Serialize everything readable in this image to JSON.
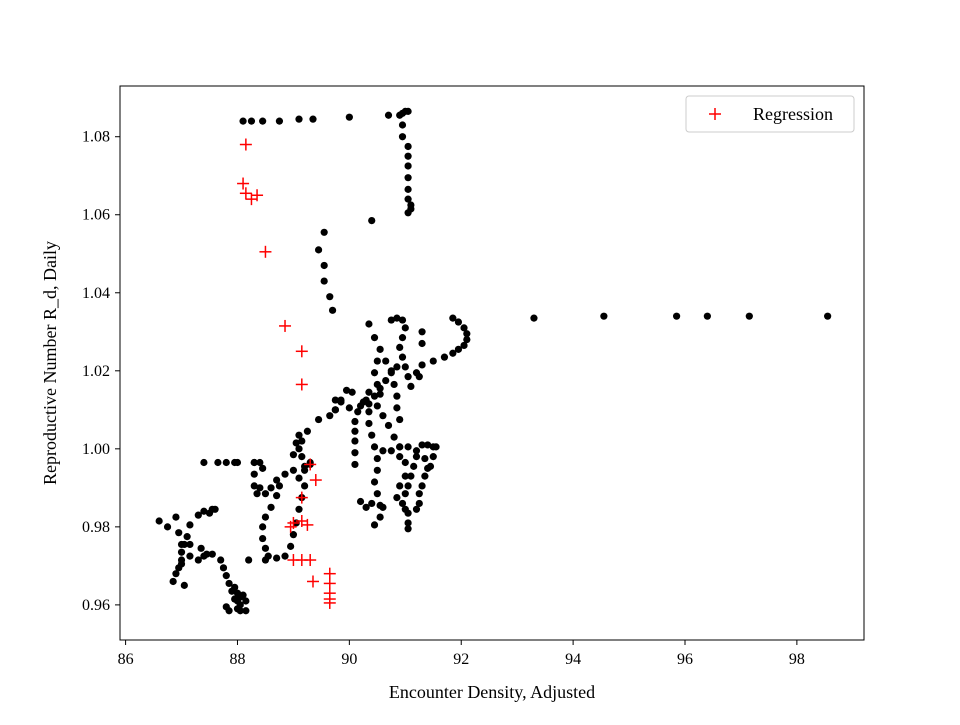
{
  "chart_data": {
    "type": "scatter",
    "title": "",
    "xlabel": "Encounter Density, Adjusted",
    "ylabel": "Reproductive Number R_d, Daily",
    "xlim": [
      85.9,
      99.2
    ],
    "ylim": [
      0.951,
      1.093
    ],
    "xticks": [
      "86",
      "88",
      "90",
      "92",
      "94",
      "96",
      "98"
    ],
    "yticks": [
      "0.96",
      "0.98",
      "1.00",
      "1.02",
      "1.04",
      "1.06",
      "1.08"
    ],
    "grid": false,
    "legend": {
      "position": "top-right",
      "entries": [
        "Regression"
      ]
    },
    "colors": {
      "points": "#000000",
      "regression": "#ff0000"
    },
    "series": [
      {
        "marker": "circle",
        "color": "#000000",
        "points": [
          [
            88.1,
            1.084
          ],
          [
            88.25,
            1.084
          ],
          [
            88.45,
            1.084
          ],
          [
            88.75,
            1.084
          ],
          [
            89.1,
            1.0845
          ],
          [
            89.35,
            1.0845
          ],
          [
            90.0,
            1.085
          ],
          [
            90.7,
            1.0855
          ],
          [
            90.9,
            1.0855
          ],
          [
            90.95,
            1.086
          ],
          [
            91.0,
            1.0865
          ],
          [
            91.05,
            1.0865
          ],
          [
            90.95,
            1.083
          ],
          [
            90.95,
            1.08
          ],
          [
            91.05,
            1.0775
          ],
          [
            91.05,
            1.075
          ],
          [
            91.05,
            1.0725
          ],
          [
            91.05,
            1.0695
          ],
          [
            91.05,
            1.0665
          ],
          [
            91.05,
            1.064
          ],
          [
            91.1,
            1.0625
          ],
          [
            91.1,
            1.0615
          ],
          [
            91.05,
            1.0605
          ],
          [
            90.4,
            1.0585
          ],
          [
            89.55,
            1.0555
          ],
          [
            89.45,
            1.051
          ],
          [
            89.55,
            1.047
          ],
          [
            89.55,
            1.043
          ],
          [
            89.65,
            1.039
          ],
          [
            89.7,
            1.0355
          ],
          [
            93.3,
            1.0335
          ],
          [
            94.55,
            1.034
          ],
          [
            95.85,
            1.034
          ],
          [
            96.4,
            1.034
          ],
          [
            97.15,
            1.034
          ],
          [
            98.55,
            1.034
          ],
          [
            90.75,
            1.033
          ],
          [
            90.85,
            1.0335
          ],
          [
            90.95,
            1.033
          ],
          [
            91.0,
            1.031
          ],
          [
            90.95,
            1.0285
          ],
          [
            90.9,
            1.026
          ],
          [
            90.95,
            1.0235
          ],
          [
            91.0,
            1.021
          ],
          [
            91.05,
            1.0185
          ],
          [
            91.1,
            1.016
          ],
          [
            91.85,
            1.0335
          ],
          [
            91.95,
            1.0325
          ],
          [
            92.05,
            1.031
          ],
          [
            92.1,
            1.0295
          ],
          [
            92.1,
            1.028
          ],
          [
            92.05,
            1.0265
          ],
          [
            91.95,
            1.0255
          ],
          [
            91.85,
            1.0245
          ],
          [
            91.7,
            1.0235
          ],
          [
            91.5,
            1.0225
          ],
          [
            91.3,
            1.0215
          ],
          [
            91.2,
            1.0195
          ],
          [
            91.25,
            1.0185
          ],
          [
            91.3,
            1.03
          ],
          [
            91.3,
            1.027
          ],
          [
            90.35,
            1.032
          ],
          [
            90.45,
            1.0285
          ],
          [
            90.55,
            1.0255
          ],
          [
            90.5,
            1.0225
          ],
          [
            90.45,
            1.0195
          ],
          [
            90.5,
            1.0165
          ],
          [
            90.55,
            1.014
          ],
          [
            90.5,
            1.011
          ],
          [
            90.6,
            1.0085
          ],
          [
            90.7,
            1.006
          ],
          [
            90.8,
            1.003
          ],
          [
            90.9,
            1.0005
          ],
          [
            90.65,
            1.0225
          ],
          [
            90.75,
            1.0195
          ],
          [
            90.8,
            1.0165
          ],
          [
            90.85,
            1.0135
          ],
          [
            90.85,
            1.0105
          ],
          [
            90.9,
            1.0075
          ],
          [
            90.35,
            1.0145
          ],
          [
            90.25,
            1.012
          ],
          [
            90.15,
            1.0095
          ],
          [
            90.1,
            1.007
          ],
          [
            90.1,
            1.0045
          ],
          [
            90.1,
            1.002
          ],
          [
            90.1,
            0.999
          ],
          [
            90.1,
            0.996
          ],
          [
            90.3,
            1.0125
          ],
          [
            90.35,
            1.0095
          ],
          [
            90.35,
            1.0065
          ],
          [
            90.4,
            1.0035
          ],
          [
            90.45,
            1.0005
          ],
          [
            90.5,
            0.9975
          ],
          [
            90.5,
            0.9945
          ],
          [
            90.45,
            0.9915
          ],
          [
            90.5,
            0.9885
          ],
          [
            90.55,
            0.9855
          ],
          [
            90.55,
            0.9825
          ],
          [
            90.45,
            0.9805
          ],
          [
            90.2,
            0.9865
          ],
          [
            90.3,
            0.985
          ],
          [
            90.4,
            0.986
          ],
          [
            90.6,
            0.985
          ],
          [
            90.6,
            0.9995
          ],
          [
            90.75,
            0.9995
          ],
          [
            90.9,
            1.0005
          ],
          [
            91.05,
            1.0005
          ],
          [
            91.2,
            0.9995
          ],
          [
            91.3,
            1.001
          ],
          [
            91.4,
            1.001
          ],
          [
            91.5,
            1.0005
          ],
          [
            91.55,
            1.0005
          ],
          [
            91.5,
            0.998
          ],
          [
            91.45,
            0.9955
          ],
          [
            91.35,
            0.993
          ],
          [
            91.3,
            0.9905
          ],
          [
            91.25,
            0.9885
          ],
          [
            91.25,
            0.986
          ],
          [
            91.2,
            0.9845
          ],
          [
            91.05,
            0.9835
          ],
          [
            91.0,
            0.9845
          ],
          [
            90.95,
            0.986
          ],
          [
            90.85,
            0.9875
          ],
          [
            90.9,
            0.9905
          ],
          [
            91.0,
            0.993
          ],
          [
            91.0,
            0.9965
          ],
          [
            90.9,
            0.998
          ],
          [
            91.05,
            0.981
          ],
          [
            91.05,
            0.9795
          ],
          [
            91.2,
            0.998
          ],
          [
            91.15,
            0.9955
          ],
          [
            91.1,
            0.993
          ],
          [
            91.05,
            0.9905
          ],
          [
            91.0,
            0.9885
          ],
          [
            91.35,
            0.9975
          ],
          [
            91.4,
            0.995
          ],
          [
            89.95,
            1.015
          ],
          [
            89.85,
            1.0125
          ],
          [
            89.75,
            1.01
          ],
          [
            89.65,
            1.0085
          ],
          [
            89.45,
            1.0075
          ],
          [
            89.25,
            1.0045
          ],
          [
            89.15,
            1.002
          ],
          [
            89.1,
            1.0
          ],
          [
            89.15,
            0.998
          ],
          [
            89.3,
            0.9965
          ],
          [
            89.2,
            0.9955
          ],
          [
            89.0,
            0.9945
          ],
          [
            88.85,
            0.9935
          ],
          [
            88.7,
            0.992
          ],
          [
            88.6,
            0.99
          ],
          [
            88.5,
            0.9885
          ],
          [
            88.35,
            0.9885
          ],
          [
            88.3,
            0.9905
          ],
          [
            88.3,
            0.9935
          ],
          [
            88.3,
            0.9965
          ],
          [
            88.4,
            0.9965
          ],
          [
            88.45,
            0.995
          ],
          [
            88.4,
            0.99
          ],
          [
            88.75,
            0.9905
          ],
          [
            88.7,
            0.988
          ],
          [
            88.6,
            0.985
          ],
          [
            88.5,
            0.9825
          ],
          [
            88.45,
            0.98
          ],
          [
            88.45,
            0.977
          ],
          [
            88.5,
            0.9745
          ],
          [
            88.55,
            0.9725
          ],
          [
            88.7,
            0.972
          ],
          [
            88.85,
            0.9725
          ],
          [
            88.95,
            0.975
          ],
          [
            89.0,
            0.978
          ],
          [
            89.05,
            0.981
          ],
          [
            89.1,
            0.9845
          ],
          [
            89.15,
            0.9875
          ],
          [
            89.2,
            0.9905
          ],
          [
            89.1,
            0.9925
          ],
          [
            89.2,
            0.9945
          ],
          [
            89.3,
            0.996
          ],
          [
            89.1,
            1.0035
          ],
          [
            89.05,
            1.0015
          ],
          [
            89.0,
            0.9985
          ],
          [
            87.8,
            0.9965
          ],
          [
            87.65,
            0.9965
          ],
          [
            87.95,
            0.9965
          ],
          [
            88.0,
            0.9965
          ],
          [
            88.3,
            0.9965
          ],
          [
            87.4,
            0.9965
          ],
          [
            87.55,
            0.973
          ],
          [
            87.4,
            0.9725
          ],
          [
            87.3,
            0.9715
          ],
          [
            87.45,
            0.973
          ],
          [
            87.7,
            0.9715
          ],
          [
            87.75,
            0.9695
          ],
          [
            87.8,
            0.9675
          ],
          [
            87.85,
            0.9655
          ],
          [
            87.9,
            0.9635
          ],
          [
            87.95,
            0.9615
          ],
          [
            87.8,
            0.9595
          ],
          [
            87.85,
            0.9585
          ],
          [
            88.0,
            0.959
          ],
          [
            88.0,
            0.961
          ],
          [
            88.0,
            0.963
          ],
          [
            87.95,
            0.9645
          ],
          [
            88.05,
            0.96
          ],
          [
            88.05,
            0.962
          ],
          [
            88.1,
            0.9625
          ],
          [
            88.15,
            0.961
          ],
          [
            88.15,
            0.9585
          ],
          [
            88.05,
            0.9585
          ],
          [
            88.2,
            0.9715
          ],
          [
            88.5,
            0.9715
          ],
          [
            87.6,
            0.9845
          ],
          [
            87.55,
            0.9845
          ],
          [
            87.5,
            0.9835
          ],
          [
            87.4,
            0.984
          ],
          [
            87.3,
            0.983
          ],
          [
            87.15,
            0.9805
          ],
          [
            87.1,
            0.9775
          ],
          [
            87.05,
            0.9755
          ],
          [
            87.0,
            0.9735
          ],
          [
            87.0,
            0.9715
          ],
          [
            86.95,
            0.9695
          ],
          [
            86.9,
            0.968
          ],
          [
            86.85,
            0.966
          ],
          [
            86.6,
            0.9815
          ],
          [
            86.75,
            0.98
          ],
          [
            86.9,
            0.9825
          ],
          [
            86.95,
            0.9785
          ],
          [
            87.0,
            0.9755
          ],
          [
            87.15,
            0.9755
          ],
          [
            87.35,
            0.9745
          ],
          [
            87.15,
            0.9725
          ],
          [
            87.0,
            0.9705
          ],
          [
            87.05,
            0.965
          ],
          [
            90.05,
            1.0145
          ],
          [
            89.85,
            1.012
          ],
          [
            89.75,
            1.0125
          ],
          [
            89.75,
            1.01
          ],
          [
            90.0,
            1.0105
          ],
          [
            90.2,
            1.011
          ],
          [
            90.35,
            1.0115
          ],
          [
            90.45,
            1.0135
          ],
          [
            90.55,
            1.0155
          ],
          [
            90.65,
            1.0175
          ],
          [
            90.75,
            1.02
          ],
          [
            90.85,
            1.021
          ]
        ]
      },
      {
        "name": "Regression",
        "marker": "plus",
        "color": "#ff0000",
        "points": [
          [
            88.15,
            1.078
          ],
          [
            88.1,
            1.068
          ],
          [
            88.15,
            1.0655
          ],
          [
            88.25,
            1.064
          ],
          [
            88.35,
            1.065
          ],
          [
            88.5,
            1.0505
          ],
          [
            88.85,
            1.0315
          ],
          [
            89.15,
            1.025
          ],
          [
            89.15,
            1.0165
          ],
          [
            89.3,
            0.996
          ],
          [
            89.4,
            0.992
          ],
          [
            89.15,
            0.9875
          ],
          [
            89.15,
            0.9815
          ],
          [
            89.0,
            0.981
          ],
          [
            89.25,
            0.9805
          ],
          [
            88.95,
            0.98
          ],
          [
            89.0,
            0.9715
          ],
          [
            89.15,
            0.9715
          ],
          [
            89.3,
            0.9715
          ],
          [
            89.35,
            0.966
          ],
          [
            89.65,
            0.968
          ],
          [
            89.65,
            0.9655
          ],
          [
            89.65,
            0.963
          ],
          [
            89.65,
            0.9615
          ],
          [
            89.65,
            0.9605
          ]
        ]
      }
    ]
  }
}
